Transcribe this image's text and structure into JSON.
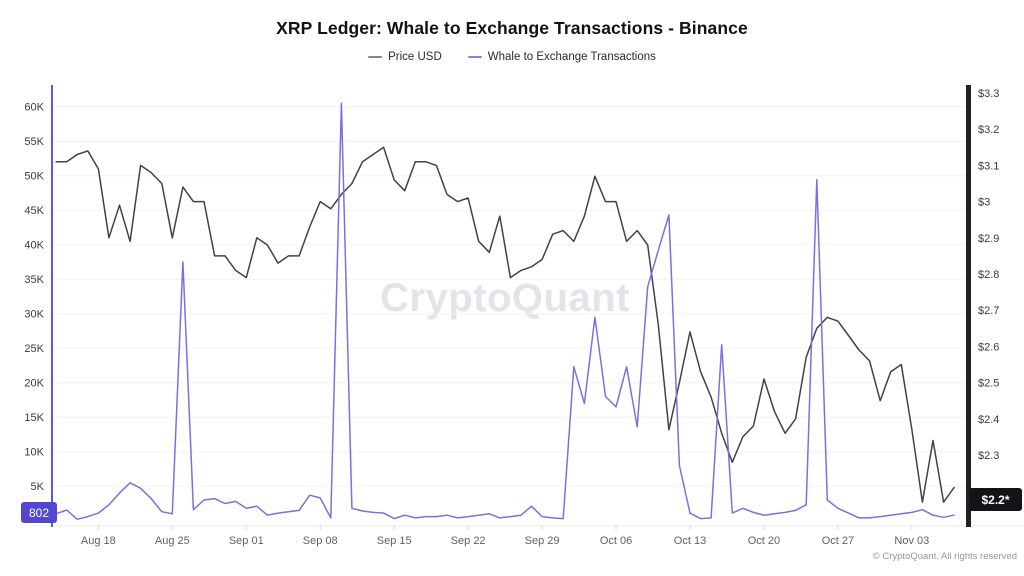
{
  "title": "XRP Ledger: Whale to Exchange Transactions - Binance",
  "watermark": "CryptoQuant",
  "copyright": "© CryptoQuant. All rights reserved",
  "legend": [
    {
      "label": "Price USD",
      "color": "#85858e"
    },
    {
      "label": "Whale to Exchange Transactions",
      "color": "#8a7df0"
    }
  ],
  "badges": {
    "whale_current": "802",
    "price_current": "$2.2*"
  },
  "chart_data": {
    "type": "line",
    "title": "XRP Ledger: Whale to Exchange Transactions - Binance",
    "x_interval": "daily",
    "x_dates": [
      "Aug 14",
      "Aug 15",
      "Aug 16",
      "Aug 17",
      "Aug 18",
      "Aug 19",
      "Aug 20",
      "Aug 21",
      "Aug 22",
      "Aug 23",
      "Aug 24",
      "Aug 25",
      "Aug 26",
      "Aug 27",
      "Aug 28",
      "Aug 29",
      "Aug 30",
      "Aug 31",
      "Sep 01",
      "Sep 02",
      "Sep 03",
      "Sep 04",
      "Sep 05",
      "Sep 06",
      "Sep 07",
      "Sep 08",
      "Sep 09",
      "Sep 10",
      "Sep 11",
      "Sep 12",
      "Sep 13",
      "Sep 14",
      "Sep 15",
      "Sep 16",
      "Sep 17",
      "Sep 18",
      "Sep 19",
      "Sep 20",
      "Sep 21",
      "Sep 22",
      "Sep 23",
      "Sep 24",
      "Sep 25",
      "Sep 26",
      "Sep 27",
      "Sep 28",
      "Sep 29",
      "Sep 30",
      "Oct 01",
      "Oct 02",
      "Oct 03",
      "Oct 04",
      "Oct 05",
      "Oct 06",
      "Oct 07",
      "Oct 08",
      "Oct 09",
      "Oct 10",
      "Oct 11",
      "Oct 12",
      "Oct 13",
      "Oct 14",
      "Oct 15",
      "Oct 16",
      "Oct 17",
      "Oct 18",
      "Oct 19",
      "Oct 20",
      "Oct 21",
      "Oct 22",
      "Oct 23",
      "Oct 24",
      "Oct 25",
      "Oct 26",
      "Oct 27",
      "Oct 28",
      "Oct 29",
      "Oct 30",
      "Oct 31",
      "Nov 01",
      "Nov 02",
      "Nov 03",
      "Nov 04",
      "Nov 05",
      "Nov 06",
      "Nov 07"
    ],
    "x_ticks": [
      {
        "label": "Aug 18",
        "i": 4
      },
      {
        "label": "Aug 25",
        "i": 11
      },
      {
        "label": "Sep 01",
        "i": 18
      },
      {
        "label": "Sep 08",
        "i": 25
      },
      {
        "label": "Sep 15",
        "i": 32
      },
      {
        "label": "Sep 22",
        "i": 39
      },
      {
        "label": "Sep 29",
        "i": 46
      },
      {
        "label": "Oct 06",
        "i": 53
      },
      {
        "label": "Oct 13",
        "i": 60
      },
      {
        "label": "Oct 20",
        "i": 67
      },
      {
        "label": "Oct 27",
        "i": 74
      },
      {
        "label": "Nov 03",
        "i": 81
      }
    ],
    "left_axis": {
      "title": "Whale to Exchange Transactions (count)",
      "ticks": [
        {
          "v": 5000,
          "label": "5K"
        },
        {
          "v": 10000,
          "label": "10K"
        },
        {
          "v": 15000,
          "label": "15K"
        },
        {
          "v": 20000,
          "label": "20K"
        },
        {
          "v": 25000,
          "label": "25K"
        },
        {
          "v": 30000,
          "label": "30K"
        },
        {
          "v": 35000,
          "label": "35K"
        },
        {
          "v": 40000,
          "label": "40K"
        },
        {
          "v": 45000,
          "label": "45K"
        },
        {
          "v": 50000,
          "label": "50K"
        },
        {
          "v": 55000,
          "label": "55K"
        },
        {
          "v": 60000,
          "label": "60K"
        }
      ],
      "range": [
        0,
        63000
      ],
      "axis_color": "#6357d9",
      "current_value": 802
    },
    "right_axis": {
      "title": "Price USD",
      "ticks": [
        {
          "v": 2.3,
          "label": "$2.3"
        },
        {
          "v": 2.4,
          "label": "$2.4"
        },
        {
          "v": 2.5,
          "label": "$2.5"
        },
        {
          "v": 2.6,
          "label": "$2.6"
        },
        {
          "v": 2.7,
          "label": "$2.7"
        },
        {
          "v": 2.8,
          "label": "$2.8"
        },
        {
          "v": 2.9,
          "label": "$2.9"
        },
        {
          "v": 3.0,
          "label": "$3"
        },
        {
          "v": 3.1,
          "label": "$3.1"
        },
        {
          "v": 3.2,
          "label": "$3.2"
        },
        {
          "v": 3.3,
          "label": "$3.3"
        }
      ],
      "range": [
        2.1,
        3.32
      ],
      "axis_color": "#202026",
      "current_value": "2.2*"
    },
    "grid": "horizontal-only",
    "legend_position": "top-center",
    "series": [
      {
        "name": "Price USD",
        "key": "price",
        "axis": "right",
        "color": "#41414a",
        "values": [
          3.11,
          3.11,
          3.13,
          3.14,
          3.09,
          2.9,
          2.99,
          2.89,
          3.1,
          3.08,
          3.05,
          2.9,
          3.04,
          3.0,
          3.0,
          2.85,
          2.85,
          2.81,
          2.79,
          2.9,
          2.88,
          2.83,
          2.85,
          2.85,
          2.93,
          3.0,
          2.98,
          3.02,
          3.05,
          3.11,
          3.13,
          3.15,
          3.06,
          3.03,
          3.11,
          3.11,
          3.1,
          3.02,
          3.0,
          3.01,
          2.89,
          2.86,
          2.96,
          2.79,
          2.81,
          2.82,
          2.84,
          2.91,
          2.92,
          2.89,
          2.96,
          3.07,
          3.0,
          3.0,
          2.89,
          2.92,
          2.88,
          2.66,
          2.37,
          2.5,
          2.64,
          2.53,
          2.46,
          2.36,
          2.28,
          2.35,
          2.38,
          2.51,
          2.42,
          2.36,
          2.4,
          2.57,
          2.65,
          2.68,
          2.67,
          2.63,
          2.59,
          2.56,
          2.45,
          2.53,
          2.55,
          2.37,
          2.17,
          2.34,
          2.17,
          2.21
        ]
      },
      {
        "name": "Whale to Exchange Transactions",
        "key": "whale",
        "axis": "left",
        "color": "#7b6fe3",
        "values": [
          1000,
          1550,
          200,
          600,
          1100,
          2300,
          4000,
          5500,
          4700,
          3200,
          1300,
          1000,
          37500,
          1600,
          3000,
          3200,
          2500,
          2800,
          1800,
          2100,
          800,
          1100,
          1300,
          1500,
          3700,
          3300,
          400,
          60500,
          1800,
          1400,
          1200,
          1100,
          300,
          800,
          400,
          600,
          600,
          800,
          400,
          600,
          800,
          1000,
          400,
          600,
          800,
          2100,
          600,
          400,
          300,
          22300,
          17000,
          29500,
          18000,
          16500,
          22300,
          13600,
          33900,
          39200,
          44300,
          8000,
          1100,
          300,
          400,
          25500,
          1100,
          1800,
          1200,
          800,
          1000,
          1200,
          1500,
          2300,
          49400,
          3000,
          1800,
          1100,
          400,
          400,
          600,
          800,
          1000,
          1200,
          1600,
          800,
          500,
          802
        ]
      }
    ]
  }
}
